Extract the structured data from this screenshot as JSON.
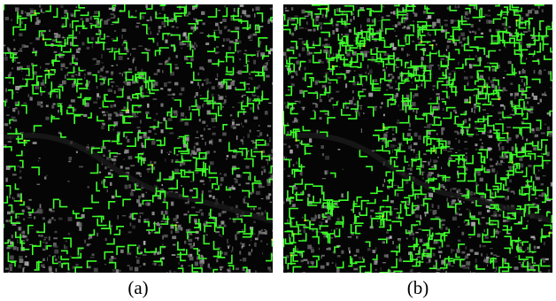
{
  "figure": {
    "panels": [
      {
        "label": "(a)",
        "image": "aerial-city-map-with-green-corner-detections-sparse"
      },
      {
        "label": "(b)",
        "image": "aerial-city-map-with-green-corner-detections-dense"
      }
    ],
    "colors": {
      "background": "#050505",
      "buildings": "#8a8a8a",
      "detections": "#3cff2a",
      "accent_yellow": "#e8e020"
    }
  }
}
